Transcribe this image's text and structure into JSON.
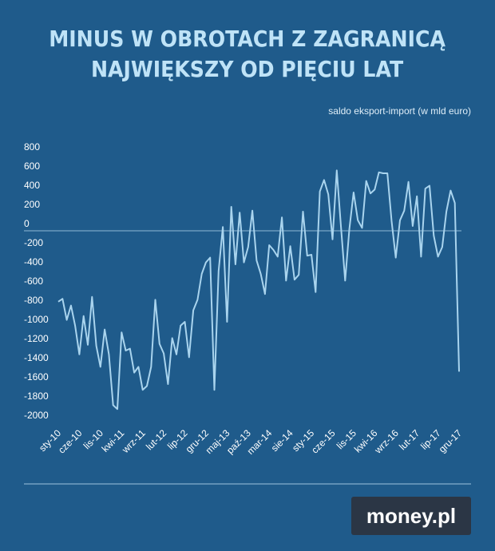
{
  "chart_data": {
    "type": "line",
    "title": [
      "MINUS W OBROTACH Z ZAGRANICĄ",
      "NAJWIĘKSZY OD PIĘCIU LAT"
    ],
    "subtitle": "saldo eksport-import (w mld euro)",
    "categories": [
      "sty-10",
      null,
      null,
      null,
      null,
      "cze-10",
      null,
      null,
      null,
      null,
      "lis-10",
      null,
      null,
      null,
      null,
      "kwi-11",
      null,
      null,
      null,
      null,
      "wrz-11",
      null,
      null,
      null,
      null,
      "lut-12",
      null,
      null,
      null,
      null,
      "lip-12",
      null,
      null,
      null,
      null,
      "gru-12",
      null,
      null,
      null,
      null,
      "maj-13",
      null,
      null,
      null,
      null,
      "paź-13",
      null,
      null,
      null,
      null,
      "mar-14",
      null,
      null,
      null,
      null,
      "sie-14",
      null,
      null,
      null,
      null,
      "sty-15",
      null,
      null,
      null,
      null,
      "cze-15",
      null,
      null,
      null,
      null,
      "lis-15",
      null,
      null,
      null,
      null,
      "kwi-16",
      null,
      null,
      null,
      null,
      "wrz-16",
      null,
      null,
      null,
      null,
      "lut-17",
      null,
      null,
      null,
      null,
      "lip-17",
      null,
      null,
      null,
      null,
      "gru-17"
    ],
    "series": [
      {
        "color": "#a9d4ee",
        "values": [
          -740,
          -710,
          -930,
          -780,
          -990,
          -1290,
          -890,
          -1190,
          -690,
          -1200,
          -1420,
          -1030,
          -1290,
          -1820,
          -1860,
          -1060,
          -1250,
          -1230,
          -1480,
          -1420,
          -1660,
          -1620,
          -1420,
          -720,
          -1180,
          -1280,
          -1600,
          -1120,
          -1290,
          -990,
          -950,
          -1320,
          -830,
          -720,
          -450,
          -330,
          -280,
          -1660,
          -420,
          40,
          -950,
          250,
          -350,
          190,
          -330,
          -170,
          210,
          -310,
          -450,
          -660,
          -150,
          -200,
          -270,
          140,
          -520,
          -160,
          -510,
          -460,
          200,
          -260,
          -250,
          -640,
          410,
          530,
          380,
          -90,
          630,
          50,
          -520,
          20,
          400,
          110,
          30,
          520,
          390,
          430,
          610,
          600,
          600,
          100,
          -280,
          110,
          210,
          510,
          50,
          360,
          -270,
          440,
          470,
          -50,
          -270,
          -170,
          200,
          420,
          290,
          -1470
        ]
      }
    ],
    "ylim": [
      -2000,
      800
    ],
    "yticks": [
      800,
      600,
      400,
      200,
      0,
      -200,
      -400,
      -600,
      -800,
      -1000,
      -1200,
      -1400,
      -1600,
      -1800,
      -2000
    ],
    "zero_line": true,
    "logo": "money.pl"
  }
}
